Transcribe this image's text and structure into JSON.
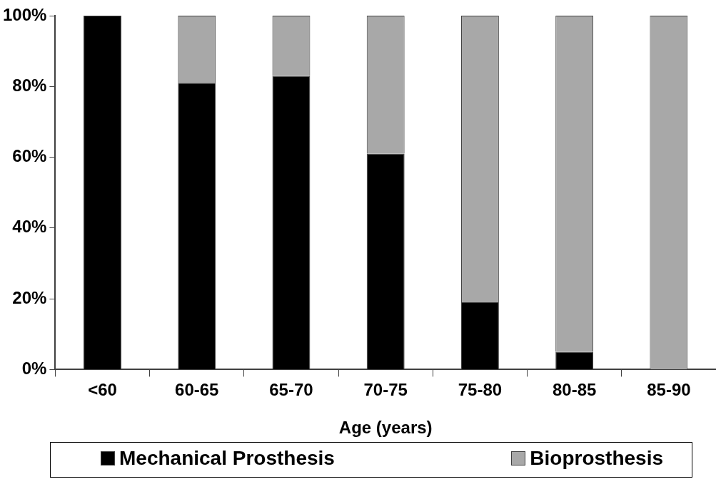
{
  "chart_data": {
    "type": "bar",
    "stacked": true,
    "xlabel": "Age (years)",
    "categories": [
      "<60",
      "60-65",
      "65-70",
      "70-75",
      "75-80",
      "80-85",
      "85-90"
    ],
    "series": [
      {
        "name": "Mechanical Prosthesis",
        "color": "#000000",
        "values": [
          100,
          81,
          83,
          61,
          19,
          5,
          0
        ]
      },
      {
        "name": "Bioprosthesis",
        "color": "#a8a8a8",
        "values": [
          0,
          19,
          17,
          39,
          81,
          95,
          100
        ]
      }
    ],
    "ylim": [
      0,
      100
    ],
    "yticks": [
      {
        "value": 0,
        "label": "0%"
      },
      {
        "value": 20,
        "label": "20%"
      },
      {
        "value": 40,
        "label": "40%"
      },
      {
        "value": 60,
        "label": "60%"
      },
      {
        "value": 80,
        "label": "80%"
      },
      {
        "value": 100,
        "label": "100%"
      }
    ],
    "grid": false,
    "legend": "bottom"
  }
}
